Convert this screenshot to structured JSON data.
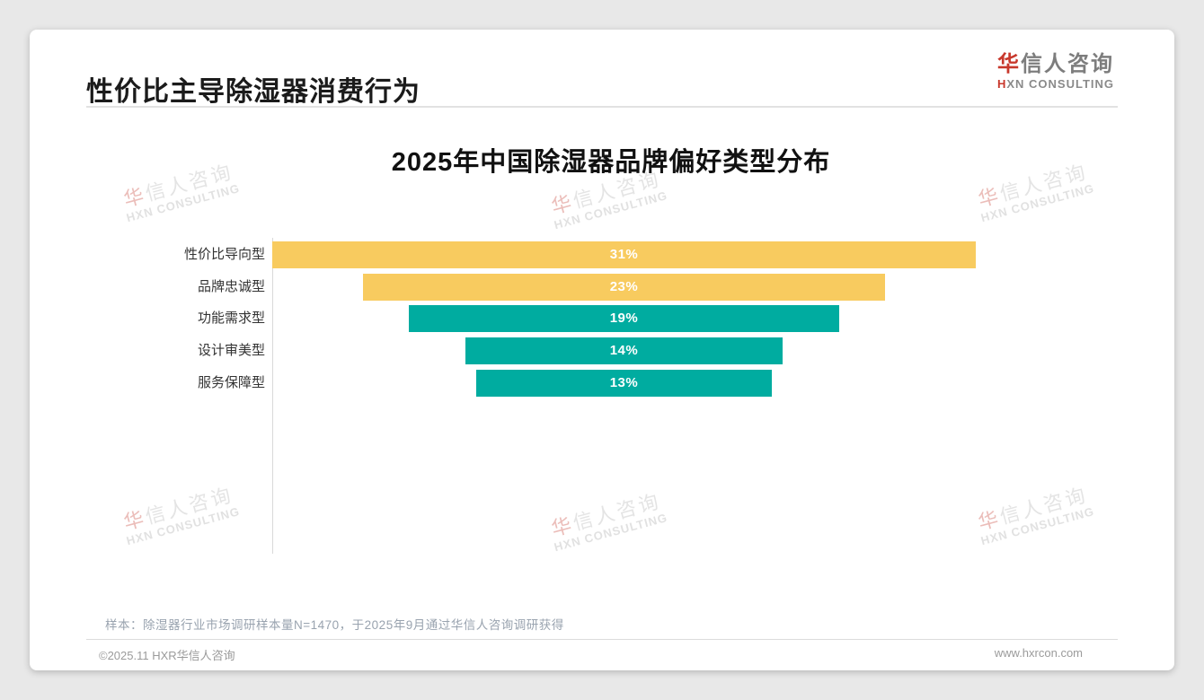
{
  "page": {
    "title": "性价比主导除湿器消费行为",
    "logo": {
      "zh_red": "华",
      "zh_gray": "信人咨询",
      "en_red": "H",
      "en_gray": "XN CONSULTING"
    },
    "watermark": {
      "line1": "华信人咨询",
      "line2": "HXN CONSULTING"
    },
    "footnote": "样本：除湿器行业市场调研样本量N=1470，于2025年9月通过华信人咨询调研获得",
    "footer_left": "©2025.11 HXR华信人咨询",
    "footer_right": "www.hxrcon.com"
  },
  "colors": {
    "bar_yellow": "#F8CB5F",
    "bar_teal": "#00ACA0",
    "logo_red": "#C8382C",
    "axis_gray": "#D9D9D9",
    "bar_value_text": "#FFFFFF"
  },
  "chart_data": {
    "type": "bar",
    "title": "2025年中国除湿器品牌偏好类型分布",
    "categories": [
      "性价比导向型",
      "品牌忠诚型",
      "功能需求型",
      "设计审美型",
      "服务保障型"
    ],
    "values": [
      31,
      23,
      19,
      14,
      13
    ],
    "value_labels": [
      "31%",
      "23%",
      "19%",
      "14%",
      "13%"
    ],
    "series_colors": [
      "#F8CB5F",
      "#F8CB5F",
      "#00ACA0",
      "#00ACA0",
      "#00ACA0"
    ],
    "orientation": "horizontal",
    "bar_alignment": "centered-funnel",
    "xlabel": "",
    "ylabel": "",
    "xlim": [
      0,
      31
    ],
    "grid": false,
    "legend": false,
    "value_label_position": "inside-center"
  }
}
